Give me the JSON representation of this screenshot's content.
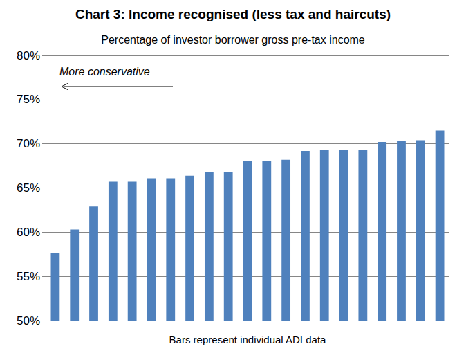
{
  "chart_data": {
    "type": "bar",
    "title": "Chart 3: Income recognised (less tax and haircuts)",
    "subtitle": "Percentage of investor borrower gross pre-tax income",
    "x_label": "Bars represent individual ADI data",
    "annotation": "More conservative",
    "categories": [
      null,
      null,
      null,
      null,
      null,
      null,
      null,
      null,
      null,
      null,
      null,
      null,
      null,
      null,
      null,
      null,
      null,
      null,
      null,
      null,
      null
    ],
    "values": [
      57.6,
      60.3,
      62.9,
      65.7,
      65.7,
      66.1,
      66.1,
      66.4,
      66.8,
      66.8,
      68.1,
      68.1,
      68.2,
      69.2,
      69.3,
      69.3,
      69.3,
      70.2,
      70.3,
      70.4,
      71.5
    ],
    "color": "#4f81bd",
    "ylim": [
      50,
      80
    ],
    "yticks": [
      {
        "value": 50,
        "label": "50%"
      },
      {
        "value": 55,
        "label": "55%"
      },
      {
        "value": 60,
        "label": "60%"
      },
      {
        "value": 65,
        "label": "65%"
      },
      {
        "value": 70,
        "label": "70%"
      },
      {
        "value": 75,
        "label": "75%"
      },
      {
        "value": 80,
        "label": "80%"
      }
    ],
    "grid": true,
    "tick_labels": "y"
  }
}
